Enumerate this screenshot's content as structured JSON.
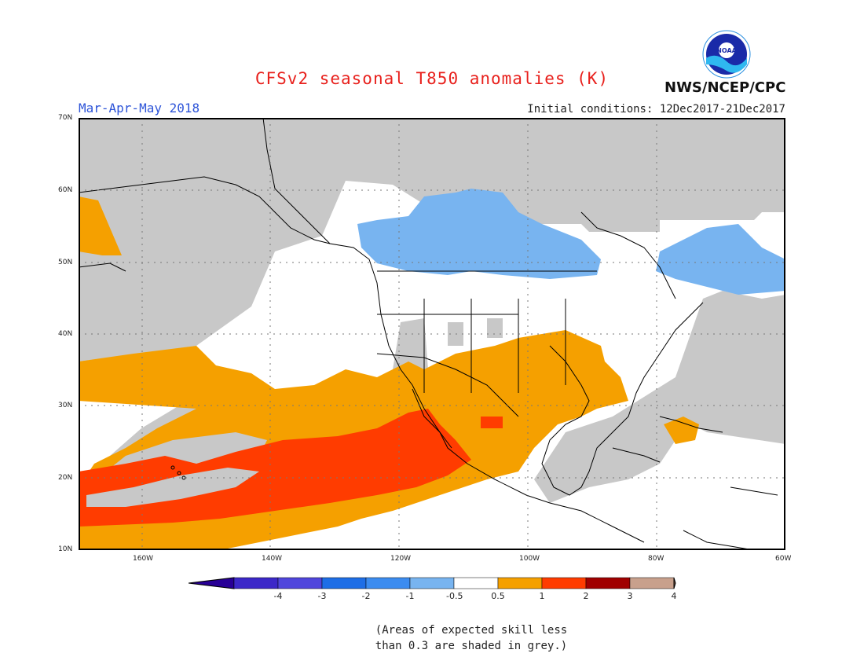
{
  "header": {
    "title": "CFSv2 seasonal T850 anomalies (K)",
    "season": "Mar-Apr-May 2018",
    "initial_conditions": "Initial conditions: 12Dec2017-21Dec2017",
    "agency": "NWS/NCEP/CPC",
    "logo_text": "NOAA"
  },
  "map": {
    "lat_labels": [
      "70N",
      "60N",
      "50N",
      "40N",
      "30N",
      "20N",
      "10N"
    ],
    "lon_labels": [
      "160W",
      "140W",
      "120W",
      "100W",
      "80W",
      "60W"
    ],
    "colors": {
      "grey": "#c8c8c8",
      "light_blue": "#78b4f0",
      "orange": "#f5a000",
      "red_orange": "#ff3c00",
      "coast": "#000000"
    }
  },
  "colorbar": {
    "labels": [
      "-4",
      "-3",
      "-2",
      "-1",
      "-0.5",
      "0.5",
      "1",
      "2",
      "3",
      "4"
    ],
    "colors": [
      "#3c28c8",
      "#5046dc",
      "#1e6ee6",
      "#3c8cf0",
      "#78b4f0",
      "#ffffff",
      "#f5a000",
      "#ff3c00",
      "#a00000",
      "#c8a08c"
    ],
    "end_colors": [
      "#280096",
      "#78503c"
    ]
  },
  "footer": {
    "note_line1": "(Areas of expected skill less",
    "note_line2": "than 0.3 are shaded in grey.)"
  }
}
